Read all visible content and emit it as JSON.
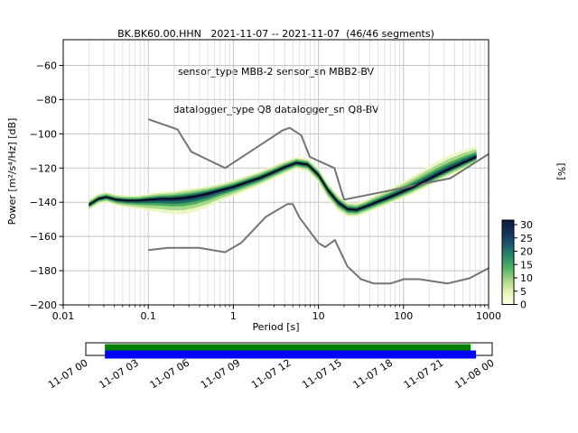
{
  "figure": {
    "title_line1": "BK.BK60.00.HHN   2021-11-07 -- 2021-11-07  (46/46 segments)",
    "title_line2": "sensor_type MBB-2 sensor_sn MBB2-BV",
    "title_line3": "datalogger_type Q8 datalogger_sn Q8-BV",
    "ylabel": "Power [m²/s⁴/Hz] [dB]",
    "xlabel": "Period [s]",
    "colorbar_label": "[%]"
  },
  "chart_data": {
    "type": "heatmap",
    "title": "BK.BK60.00.HHN   2021-11-07 -- 2021-11-07  (46/46 segments)",
    "subtitle1": "sensor_type MBB-2 sensor_sn MBB2-BV",
    "subtitle2": "datalogger_type Q8 datalogger_sn Q8-BV",
    "xlabel": "Period [s]",
    "ylabel": "Power [m²/s⁴/Hz] [dB]",
    "xscale": "log",
    "xlim": [
      0.01,
      1000
    ],
    "ylim": [
      -200,
      -45
    ],
    "grid": true,
    "xtick_values": [
      0.01,
      0.1,
      1,
      10,
      100,
      1000
    ],
    "xtick_labels": [
      "0.01",
      "0.1",
      "1",
      "10",
      "100",
      "1000"
    ],
    "ytick_values": [
      -60,
      -80,
      -100,
      -120,
      -140,
      -160,
      -180,
      -200
    ],
    "ytick_labels": [
      "−60",
      "−80",
      "−100",
      "−120",
      "−140",
      "−160",
      "−180",
      "−200"
    ],
    "colorbar": {
      "label": "[%]",
      "range": [
        0,
        30
      ],
      "tick_values": [
        0,
        5,
        10,
        15,
        20,
        25,
        30
      ],
      "tick_labels": [
        "0",
        "5",
        "10",
        "15",
        "20",
        "25",
        "30"
      ],
      "stops": [
        "#ffffe0",
        "#e7f5b6",
        "#a8d988",
        "#55b266",
        "#2b8a68",
        "#1d556f",
        "#15305c",
        "#0d1b3e"
      ]
    },
    "noise_models": {
      "color": "#747474",
      "nhnm": {
        "periods": [
          0.1,
          0.15,
          0.22,
          0.25,
          0.32,
          0.5,
          0.8,
          1.5,
          2.5,
          3.8,
          4.6,
          6.3,
          7.9,
          10,
          15.4,
          20,
          40,
          100,
          200,
          354.8,
          600,
          1000
        ],
        "db": [
          -91.5,
          -94.5,
          -97.4,
          -101.9,
          -110.5,
          -115.1,
          -120.0,
          -111.1,
          -103.9,
          -98.0,
          -96.5,
          -101.0,
          -113.5,
          -115.8,
          -120.0,
          -138.5,
          -135.5,
          -131.5,
          -128.5,
          -126.0,
          -118.8,
          -111.8
        ]
      },
      "nlnm": {
        "periods": [
          0.1,
          0.17,
          0.4,
          0.8,
          1.24,
          2.4,
          4.3,
          5.0,
          6.0,
          10,
          12,
          15.6,
          21.9,
          31.6,
          45,
          70,
          101,
          154,
          328,
          600,
          1000
        ],
        "db": [
          -168.0,
          -166.7,
          -166.7,
          -169.2,
          -163.7,
          -148.6,
          -141.1,
          -141.1,
          -149.0,
          -163.8,
          -166.2,
          -162.1,
          -177.5,
          -185.0,
          -187.5,
          -187.5,
          -185.0,
          -185.0,
          -187.5,
          -184.4,
          -178.5
        ]
      }
    },
    "psd": {
      "mode_color": "#000000",
      "periods": [
        0.02,
        0.026,
        0.032,
        0.042,
        0.055,
        0.075,
        0.1,
        0.14,
        0.19,
        0.26,
        0.36,
        0.5,
        0.7,
        1.0,
        1.4,
        2.0,
        2.8,
        4.0,
        5.5,
        7.5,
        10,
        13,
        17,
        22,
        28,
        36,
        48,
        65,
        90,
        125,
        175,
        250,
        350,
        500,
        720
      ],
      "mode_db": [
        -141.5,
        -138.0,
        -137.0,
        -138.5,
        -139.0,
        -139.0,
        -138.5,
        -138.0,
        -138.0,
        -137.5,
        -136.5,
        -135.0,
        -133.0,
        -131.0,
        -128.5,
        -126.0,
        -123.0,
        -119.5,
        -117.0,
        -118.0,
        -124.0,
        -133.0,
        -140.0,
        -144.0,
        -144.5,
        -142.5,
        -140.0,
        -137.5,
        -134.5,
        -131.5,
        -128.0,
        -124.0,
        -120.5,
        -117.0,
        -113.5
      ],
      "spread_upper_db": [
        3,
        3,
        3,
        3,
        3,
        3,
        3.5,
        4,
        4.5,
        5,
        5,
        4.5,
        4,
        4,
        4,
        4,
        4,
        3.5,
        3.5,
        3.5,
        4,
        4,
        4,
        4,
        4,
        4,
        4.5,
        5,
        5.5,
        6.5,
        7.5,
        8,
        8,
        7.5,
        6
      ],
      "spread_lower_db": [
        3,
        3,
        3,
        3.5,
        4,
        5,
        6.5,
        8,
        9,
        9.5,
        9,
        8,
        6.5,
        5.5,
        5,
        4.5,
        4,
        4,
        3.5,
        4,
        4.5,
        5,
        5,
        4.5,
        4,
        4,
        4,
        4,
        4,
        4,
        4,
        4,
        4,
        4,
        3.5
      ],
      "bands": [
        {
          "color": "#ecf7c4",
          "scale": 1.0
        },
        {
          "color": "#a7d98a",
          "scale": 0.75
        },
        {
          "color": "#4caa5e",
          "scale": 0.5
        },
        {
          "color": "#1d6e60",
          "scale": 0.32
        },
        {
          "color": "#15325c",
          "scale": 0.16
        }
      ]
    },
    "coverage": {
      "green_color": "#008000",
      "blue_color": "#0000ff",
      "green_extent": [
        0.047,
        0.947
      ],
      "blue_extent": [
        0.047,
        0.96
      ],
      "date_labels": [
        "11-07 00",
        "11-07 03",
        "11-07 06",
        "11-07 09",
        "11-07 12",
        "11-07 15",
        "11-07 18",
        "11-07 21",
        "11-08 00"
      ]
    }
  }
}
